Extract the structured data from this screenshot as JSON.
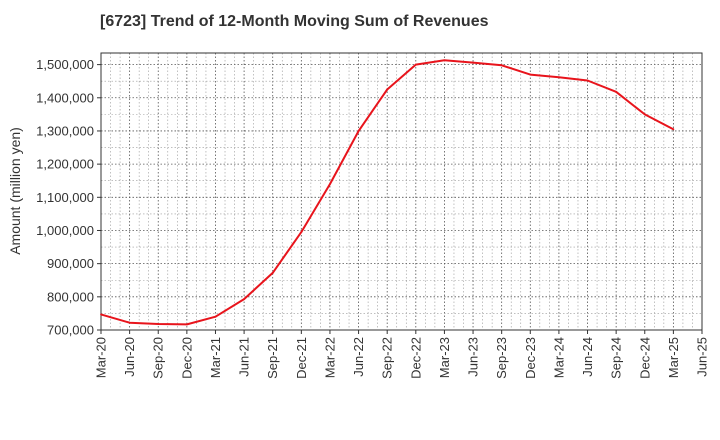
{
  "chart_data": {
    "type": "line",
    "title": "[6723]  Trend of 12-Month Moving Sum of Revenues",
    "xlabel": "",
    "ylabel": "Amount (million yen)",
    "ylim": [
      700000,
      1535000
    ],
    "yticks": [
      700000,
      800000,
      900000,
      1000000,
      1100000,
      1200000,
      1300000,
      1400000,
      1500000
    ],
    "ytick_labels": [
      "700,000",
      "800,000",
      "900,000",
      "1,000,000",
      "1,100,000",
      "1,200,000",
      "1,300,000",
      "1,400,000",
      "1,500,000"
    ],
    "categories": [
      "Mar-20",
      "Jun-20",
      "Sep-20",
      "Dec-20",
      "Mar-21",
      "Jun-21",
      "Sep-21",
      "Dec-21",
      "Mar-22",
      "Jun-22",
      "Sep-22",
      "Dec-22",
      "Mar-23",
      "Jun-23",
      "Sep-23",
      "Dec-23",
      "Mar-24",
      "Jun-24",
      "Sep-24",
      "Dec-24",
      "Mar-25",
      "Jun-25"
    ],
    "grid": true,
    "series": [
      {
        "color": "#e8141c",
        "values": [
          747000,
          722000,
          718000,
          717000,
          740000,
          793000,
          872000,
          995000,
          1140000,
          1300000,
          1425000,
          1500000,
          1513000,
          1506000,
          1498000,
          1470000,
          1462000,
          1452000,
          1418000,
          1350000,
          1305000,
          null
        ]
      }
    ]
  }
}
